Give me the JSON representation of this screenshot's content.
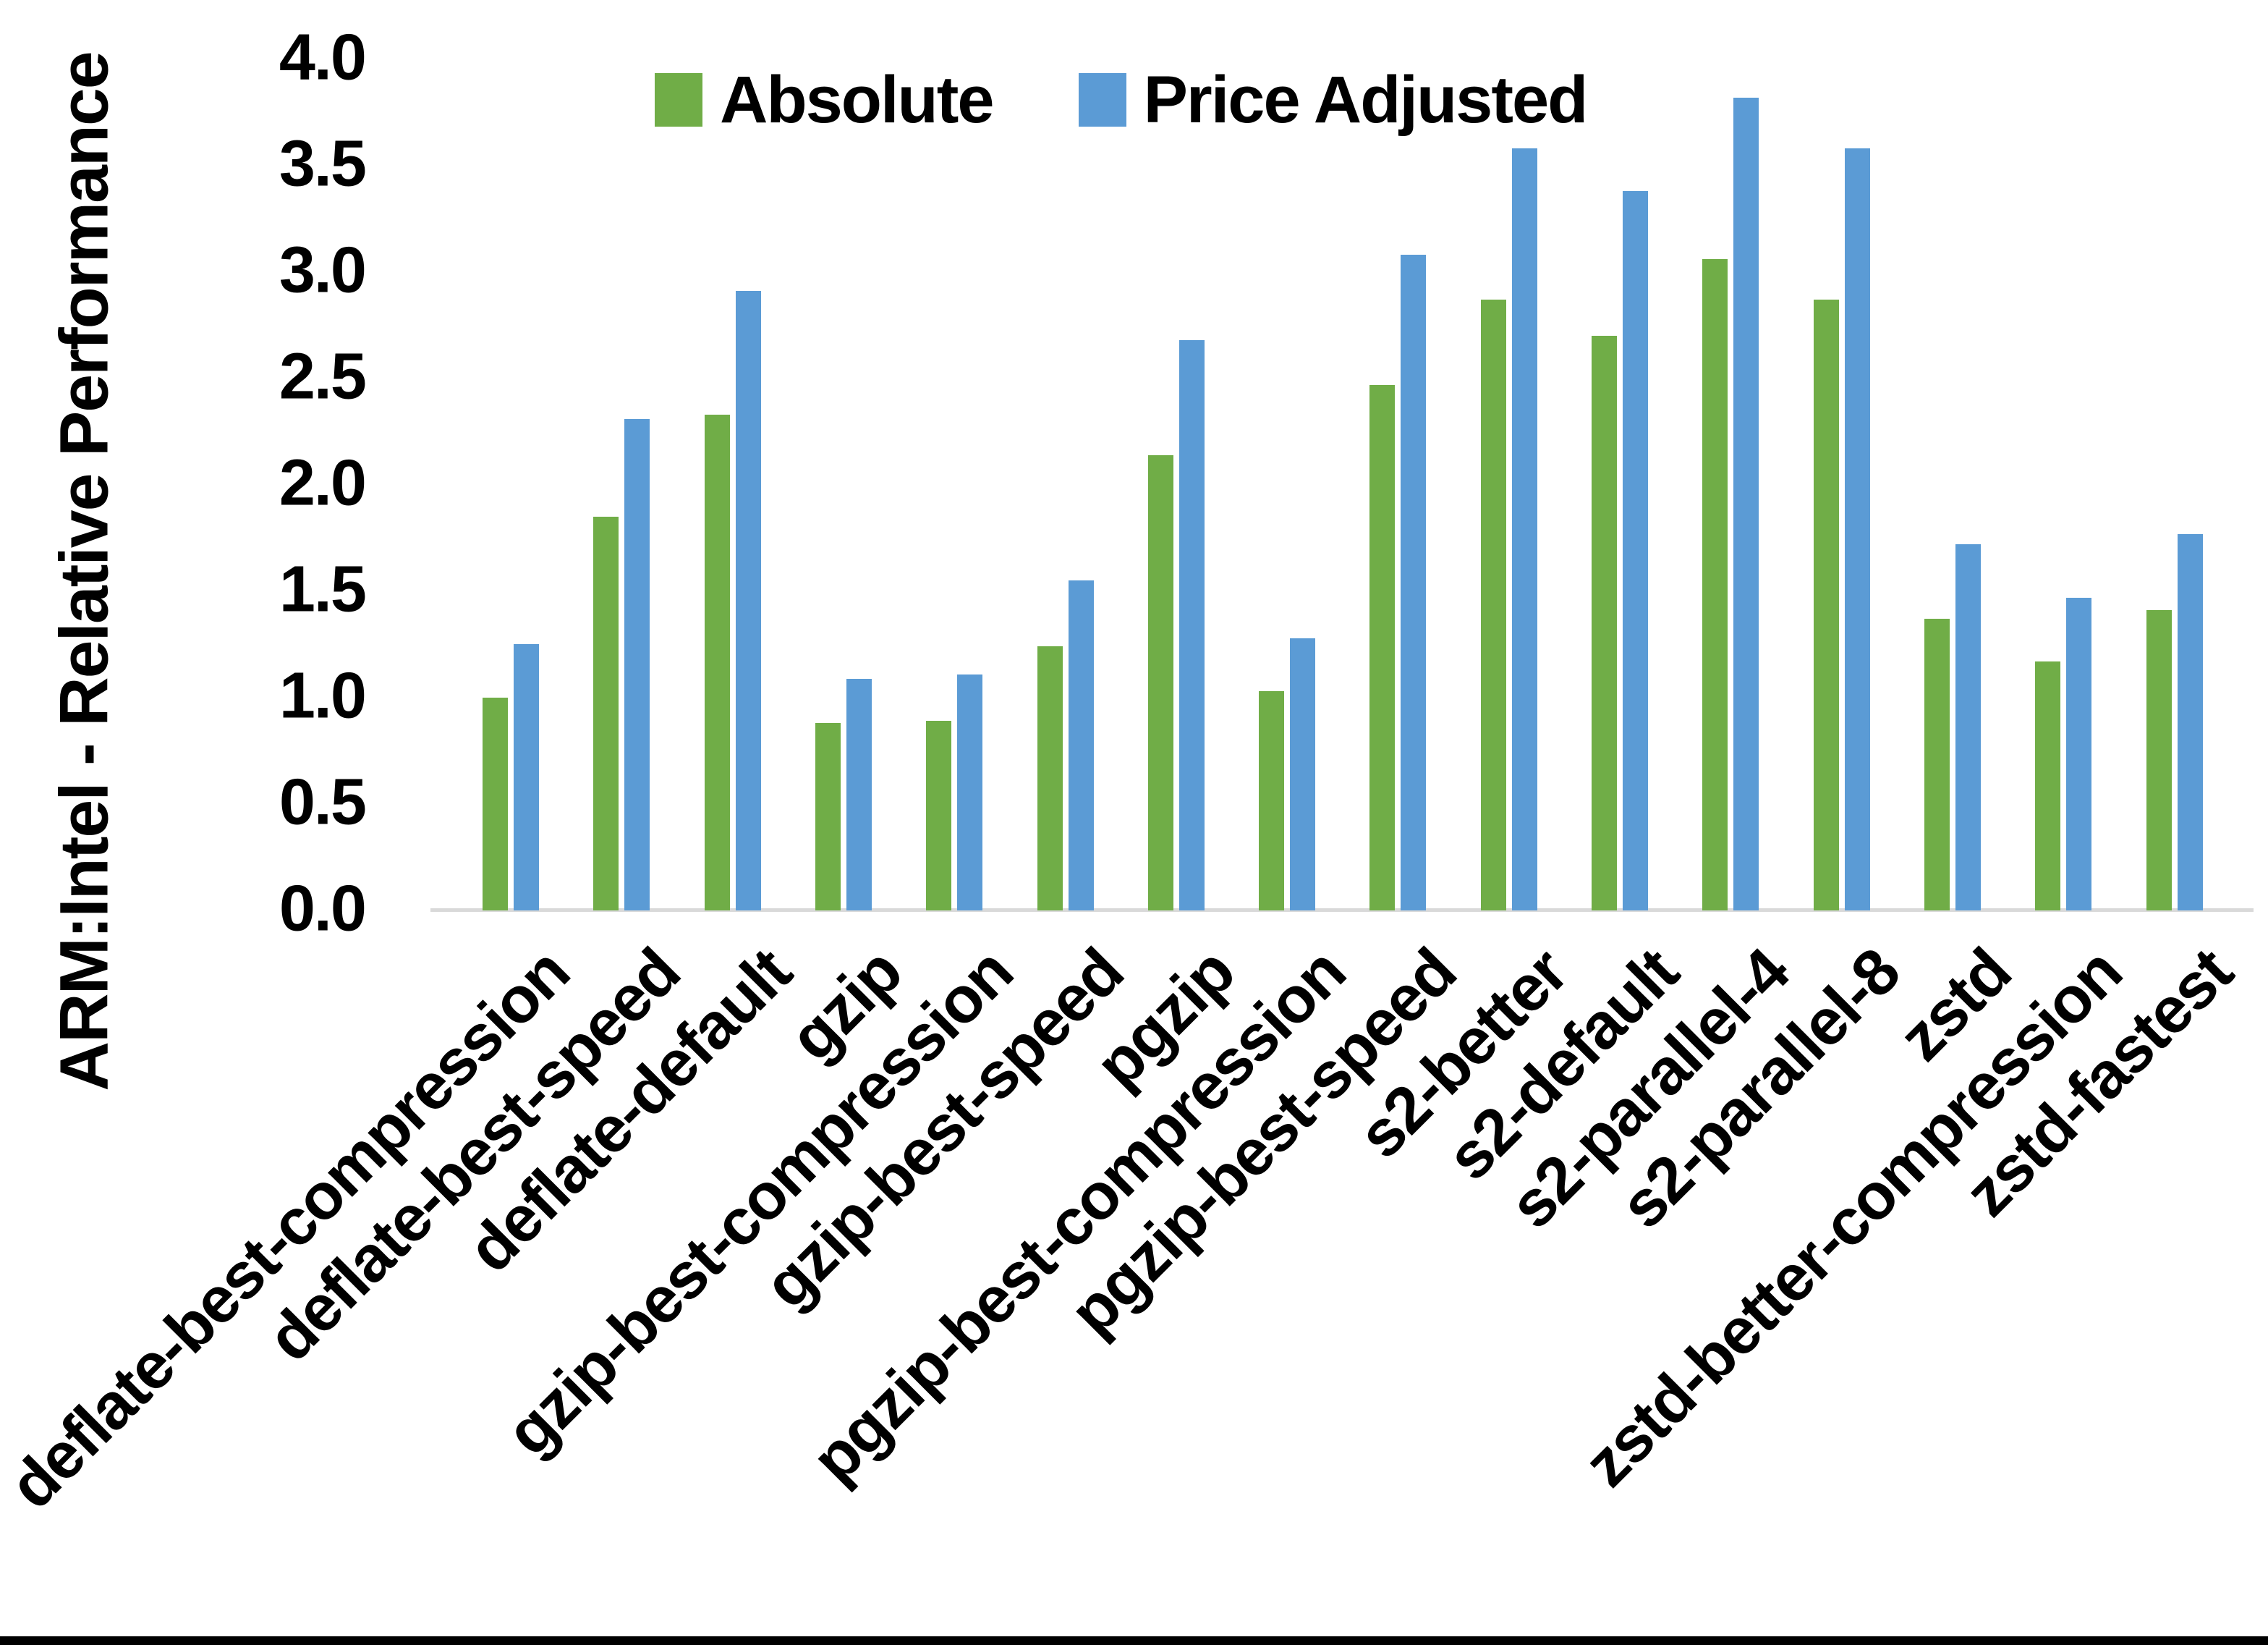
{
  "chart_data": {
    "type": "bar",
    "title": "",
    "ylabel": "ARM:Intel - Relative Performance",
    "xlabel": "",
    "ylim": [
      0.0,
      4.0
    ],
    "ytick_step": 0.5,
    "yticks": [
      "0.0",
      "0.5",
      "1.0",
      "1.5",
      "2.0",
      "2.5",
      "3.0",
      "3.5",
      "4.0"
    ],
    "grid": false,
    "legend_position": "top-center",
    "categories": [
      "deflate-best-compression",
      "deflate-best-speed",
      "deflate-default",
      "gzip",
      "gzip-best-compression",
      "gzip-best-speed",
      "pgzip",
      "pgzip-best-compression",
      "pgzip-best-speed",
      "s2-better",
      "s2-default",
      "s2-parallel-4",
      "s2-parallel-8",
      "zstd",
      "zstd-better-compression",
      "zstd-fastest"
    ],
    "series": [
      {
        "name": "Absolute",
        "color": "#70AD47",
        "values": [
          1.0,
          1.85,
          2.33,
          0.88,
          0.89,
          1.24,
          2.14,
          1.03,
          2.47,
          2.87,
          2.7,
          3.06,
          2.87,
          1.37,
          1.17,
          1.41
        ]
      },
      {
        "name": "Price Adjusted",
        "color": "#5B9BD5",
        "values": [
          1.25,
          2.31,
          2.91,
          1.09,
          1.11,
          1.55,
          2.68,
          1.28,
          3.08,
          3.58,
          3.38,
          3.82,
          3.58,
          1.72,
          1.47,
          1.77
        ]
      }
    ],
    "axis_line_color": "#D9D9D9",
    "text_color": "#000000"
  }
}
